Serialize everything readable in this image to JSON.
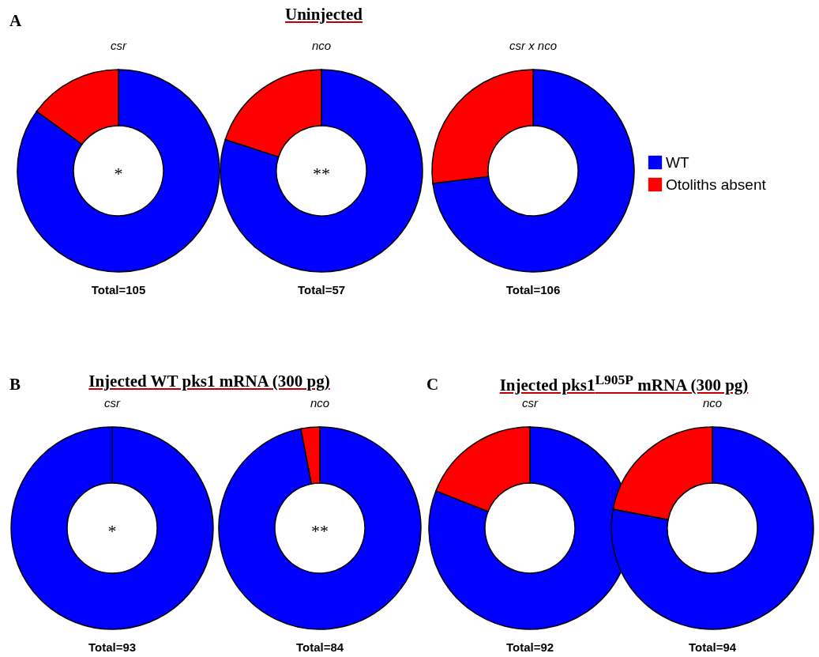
{
  "chart_data": [
    {
      "type": "donut",
      "title": "csr",
      "categories": [
        null,
        null
      ],
      "values": [
        85,
        15
      ],
      "colors": [
        "#0000ff",
        "#ff0000"
      ],
      "xlabel": "Total=105",
      "annotations": [
        "A",
        "Uninjected",
        "*"
      ]
    },
    {
      "type": "donut",
      "title": "nco",
      "categories": [
        null,
        null
      ],
      "values": [
        80,
        20
      ],
      "colors": [
        "#0000ff",
        "#ff0000"
      ],
      "xlabel": "Total=57",
      "annotations": [
        "**"
      ]
    },
    {
      "type": "donut",
      "title": "csr x nco",
      "categories": [
        "WT",
        "Otoliths absent"
      ],
      "values": [
        73,
        27
      ],
      "colors": [
        "#0000ff",
        "#ff0000"
      ],
      "xlabel": "Total=106",
      "legend": "right"
    },
    {
      "type": "donut",
      "title": "csr",
      "categories": [
        null,
        null
      ],
      "values": [
        100,
        0
      ],
      "colors": [
        "#0000ff",
        "#ff0000"
      ],
      "xlabel": "Total=93",
      "annotations": [
        "B",
        "Injected WT pks1 mRNA (300 pg)",
        "*"
      ]
    },
    {
      "type": "donut",
      "title": "nco",
      "categories": [
        null,
        null
      ],
      "values": [
        97,
        3
      ],
      "colors": [
        "#0000ff",
        "#ff0000"
      ],
      "xlabel": "Total=84",
      "annotations": [
        "**"
      ]
    },
    {
      "type": "donut",
      "title": "csr",
      "categories": [
        null,
        null
      ],
      "values": [
        81,
        19
      ],
      "colors": [
        "#0000ff",
        "#ff0000"
      ],
      "xlabel": "Total=92",
      "annotations": [
        "C",
        "Injected pks1$^{L905P}$ mRNA (300 pg)"
      ]
    },
    {
      "type": "donut",
      "title": "nco",
      "categories": [
        null,
        null
      ],
      "values": [
        78,
        22
      ],
      "colors": [
        "#0000ff",
        "#ff0000"
      ],
      "xlabel": "Total=94"
    }
  ]
}
